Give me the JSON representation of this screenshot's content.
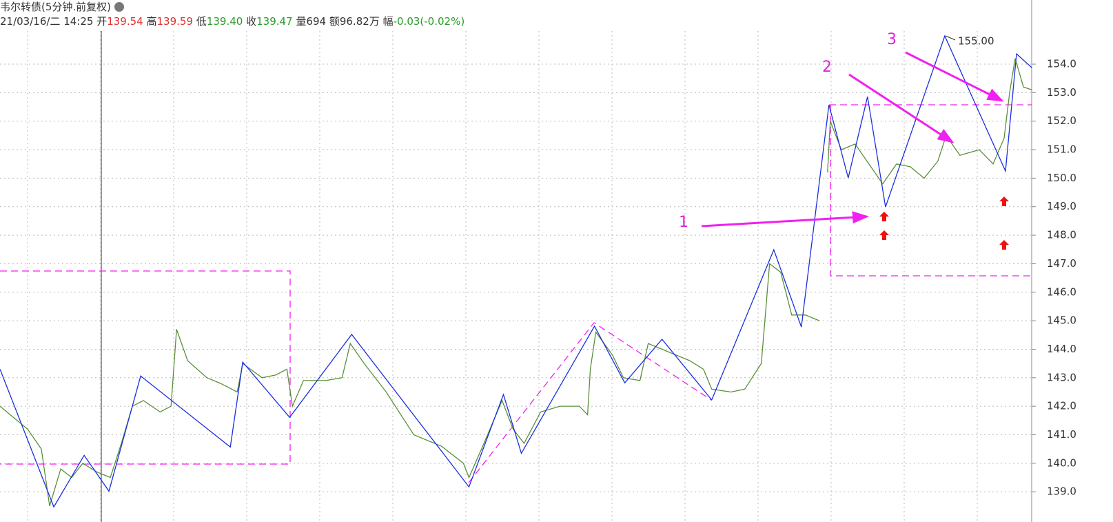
{
  "header": {
    "title": "韦尔转债(5分钟.前复权)",
    "datetime": "21/03/16/二 14:25",
    "fields": [
      {
        "label": "开",
        "value": "139.54",
        "color": "#e03030"
      },
      {
        "label": "高",
        "value": "139.59",
        "color": "#e03030"
      },
      {
        "label": "低",
        "value": "139.40",
        "color": "#2a9a2a"
      },
      {
        "label": "收",
        "value": "139.47",
        "color": "#2a9a2a"
      },
      {
        "label": "量",
        "value": "694",
        "color": "#333333"
      },
      {
        "label": "额",
        "value": "96.82万",
        "color": "#333333"
      },
      {
        "label": "幅",
        "value": "-0.03(-0.02%)",
        "color": "#2a9a2a"
      }
    ]
  },
  "chart_data": {
    "type": "line",
    "ylim": [
      137.94,
      156.25
    ],
    "xlim": [
      0,
      374
    ],
    "yticks": [
      {
        "value": 139,
        "label": "139.0"
      },
      {
        "value": 140,
        "label": "140.0"
      },
      {
        "value": 141,
        "label": "141.0"
      },
      {
        "value": 142,
        "label": "142.0"
      },
      {
        "value": 143,
        "label": "143.0"
      },
      {
        "value": 144,
        "label": "144.0"
      },
      {
        "value": 145,
        "label": "145.0"
      },
      {
        "value": 146,
        "label": "146.0"
      },
      {
        "value": 147,
        "label": "147.0"
      },
      {
        "value": 148,
        "label": "148.0"
      },
      {
        "value": 149,
        "label": "149.0"
      },
      {
        "value": 150,
        "label": "150.0"
      },
      {
        "value": 151,
        "label": "151.0"
      },
      {
        "value": 152,
        "label": "152.0"
      },
      {
        "value": 153,
        "label": "153.0"
      },
      {
        "value": 154,
        "label": "154.0"
      }
    ],
    "grid": true,
    "series": [
      {
        "name": "price",
        "color": "#5a8f3a",
        "x": [
          0,
          5,
          10,
          15,
          18,
          22,
          26,
          30,
          35,
          40,
          44,
          48,
          52,
          58,
          62,
          64,
          68,
          75,
          80,
          86,
          88,
          95,
          100,
          104,
          106,
          110,
          118,
          124,
          127,
          132,
          140,
          150,
          160,
          168,
          170,
          175,
          182,
          186,
          190,
          196,
          203,
          210,
          213,
          214,
          216,
          222,
          226,
          232,
          235,
          240,
          250,
          255,
          258,
          265,
          270,
          276,
          279,
          283,
          287,
          292,
          297,
          298.5,
          300,
          301,
          305,
          310,
          315,
          320,
          325,
          330,
          335,
          340,
          343,
          348,
          355,
          360,
          364,
          366,
          368,
          371,
          374
        ],
        "values": [
          142.0,
          141.6,
          141.2,
          140.5,
          138.5,
          139.8,
          139.5,
          140.0,
          139.7,
          139.5,
          140.7,
          142.0,
          142.2,
          141.8,
          142.0,
          144.7,
          143.6,
          143.0,
          142.8,
          142.5,
          143.5,
          143.0,
          143.1,
          143.3,
          142.0,
          142.9,
          142.9,
          143.0,
          144.2,
          143.5,
          142.5,
          141.0,
          140.6,
          140.0,
          139.5,
          140.6,
          142.2,
          141.2,
          140.7,
          141.8,
          142.0,
          142.0,
          141.7,
          143.3,
          144.6,
          143.8,
          143.0,
          142.9,
          144.2,
          144.0,
          143.6,
          143.3,
          142.6,
          142.5,
          142.6,
          143.5,
          147.0,
          146.7,
          145.2,
          145.2,
          145.0,
          null,
          150.2,
          152.0,
          151.0,
          151.2,
          150.5,
          149.8,
          150.5,
          150.4,
          150.0,
          150.6,
          151.5,
          150.8,
          151.0,
          150.5,
          151.4,
          153.0,
          154.2,
          153.2,
          153.1
        ]
      },
      {
        "name": "zigzag",
        "color": "#1a2ee0",
        "x": [
          0,
          19.5,
          30.5,
          39.5,
          51,
          83.5,
          88,
          105,
          127.5,
          170,
          182.5,
          189,
          215.5,
          226.5,
          240,
          258,
          280.5,
          290.5,
          300.5,
          307.5,
          314.5,
          321,
          342.5,
          364.5,
          368.5,
          374
        ],
        "values": [
          143.3,
          138.47,
          140.28,
          139.02,
          143.06,
          140.57,
          143.55,
          141.61,
          144.52,
          139.17,
          142.41,
          140.35,
          144.81,
          142.82,
          144.35,
          142.22,
          147.49,
          144.78,
          152.57,
          150.01,
          152.86,
          148.99,
          154.99,
          150.25,
          154.36,
          153.88
        ]
      }
    ],
    "annotations": [
      "155.00",
      "1",
      "2",
      "3"
    ]
  }
}
